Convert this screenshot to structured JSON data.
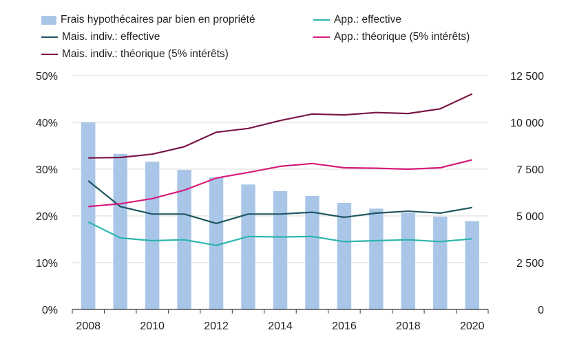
{
  "chart_data": {
    "type": "bar",
    "categories": [
      "2008",
      "2009",
      "2010",
      "2011",
      "2012",
      "2013",
      "2014",
      "2015",
      "2016",
      "2017",
      "2018",
      "2019",
      "2020"
    ],
    "left_axis": {
      "ylim": [
        0,
        50
      ],
      "ticks": [
        0,
        10,
        20,
        30,
        40,
        50
      ],
      "tick_labels": [
        "0%",
        "10%",
        "20%",
        "30%",
        "40%",
        "50%"
      ]
    },
    "right_axis": {
      "ylim": [
        0,
        12500
      ],
      "ticks": [
        0,
        2500,
        5000,
        7500,
        10000,
        12500
      ],
      "tick_labels": [
        "0",
        "2 500",
        "5 000",
        "7 500",
        "10 000",
        "12 500"
      ]
    },
    "x_tick_labels": [
      "2008",
      "2010",
      "2012",
      "2014",
      "2016",
      "2018",
      "2020"
    ],
    "bar_series": {
      "name": "Frais hypothécaires par bien en propriété",
      "axis": "right",
      "color": "#a9c6e8",
      "values": [
        10000,
        8320,
        7900,
        7460,
        7060,
        6680,
        6330,
        6070,
        5700,
        5390,
        5150,
        4960,
        4720
      ]
    },
    "line_series": [
      {
        "name": "App.: effective",
        "axis": "left",
        "color": "#2bb5ad",
        "values": [
          18.7,
          15.3,
          14.7,
          14.9,
          13.7,
          15.6,
          15.5,
          15.6,
          14.5,
          14.7,
          14.9,
          14.5,
          15.1
        ]
      },
      {
        "name": "Mais. indiv.: effective",
        "axis": "left",
        "color": "#1d5560",
        "values": [
          27.5,
          22.0,
          20.4,
          20.4,
          18.4,
          20.4,
          20.4,
          20.8,
          19.7,
          20.6,
          21.0,
          20.6,
          21.8
        ]
      },
      {
        "name": "App.: théorique (5% intérêts)",
        "axis": "left",
        "color": "#d81b7a",
        "values": [
          22.0,
          22.6,
          23.7,
          25.5,
          28.1,
          29.3,
          30.6,
          31.2,
          30.3,
          30.2,
          30.0,
          30.3,
          32.0
        ]
      },
      {
        "name": "Mais. indiv.: théorique (5% intérêts)",
        "axis": "left",
        "color": "#7a1546",
        "values": [
          32.4,
          32.5,
          33.2,
          34.8,
          37.9,
          38.7,
          40.4,
          41.8,
          41.6,
          42.1,
          41.9,
          42.9,
          46.1
        ]
      }
    ],
    "grid": "horizontal",
    "legend_placement": "top"
  }
}
